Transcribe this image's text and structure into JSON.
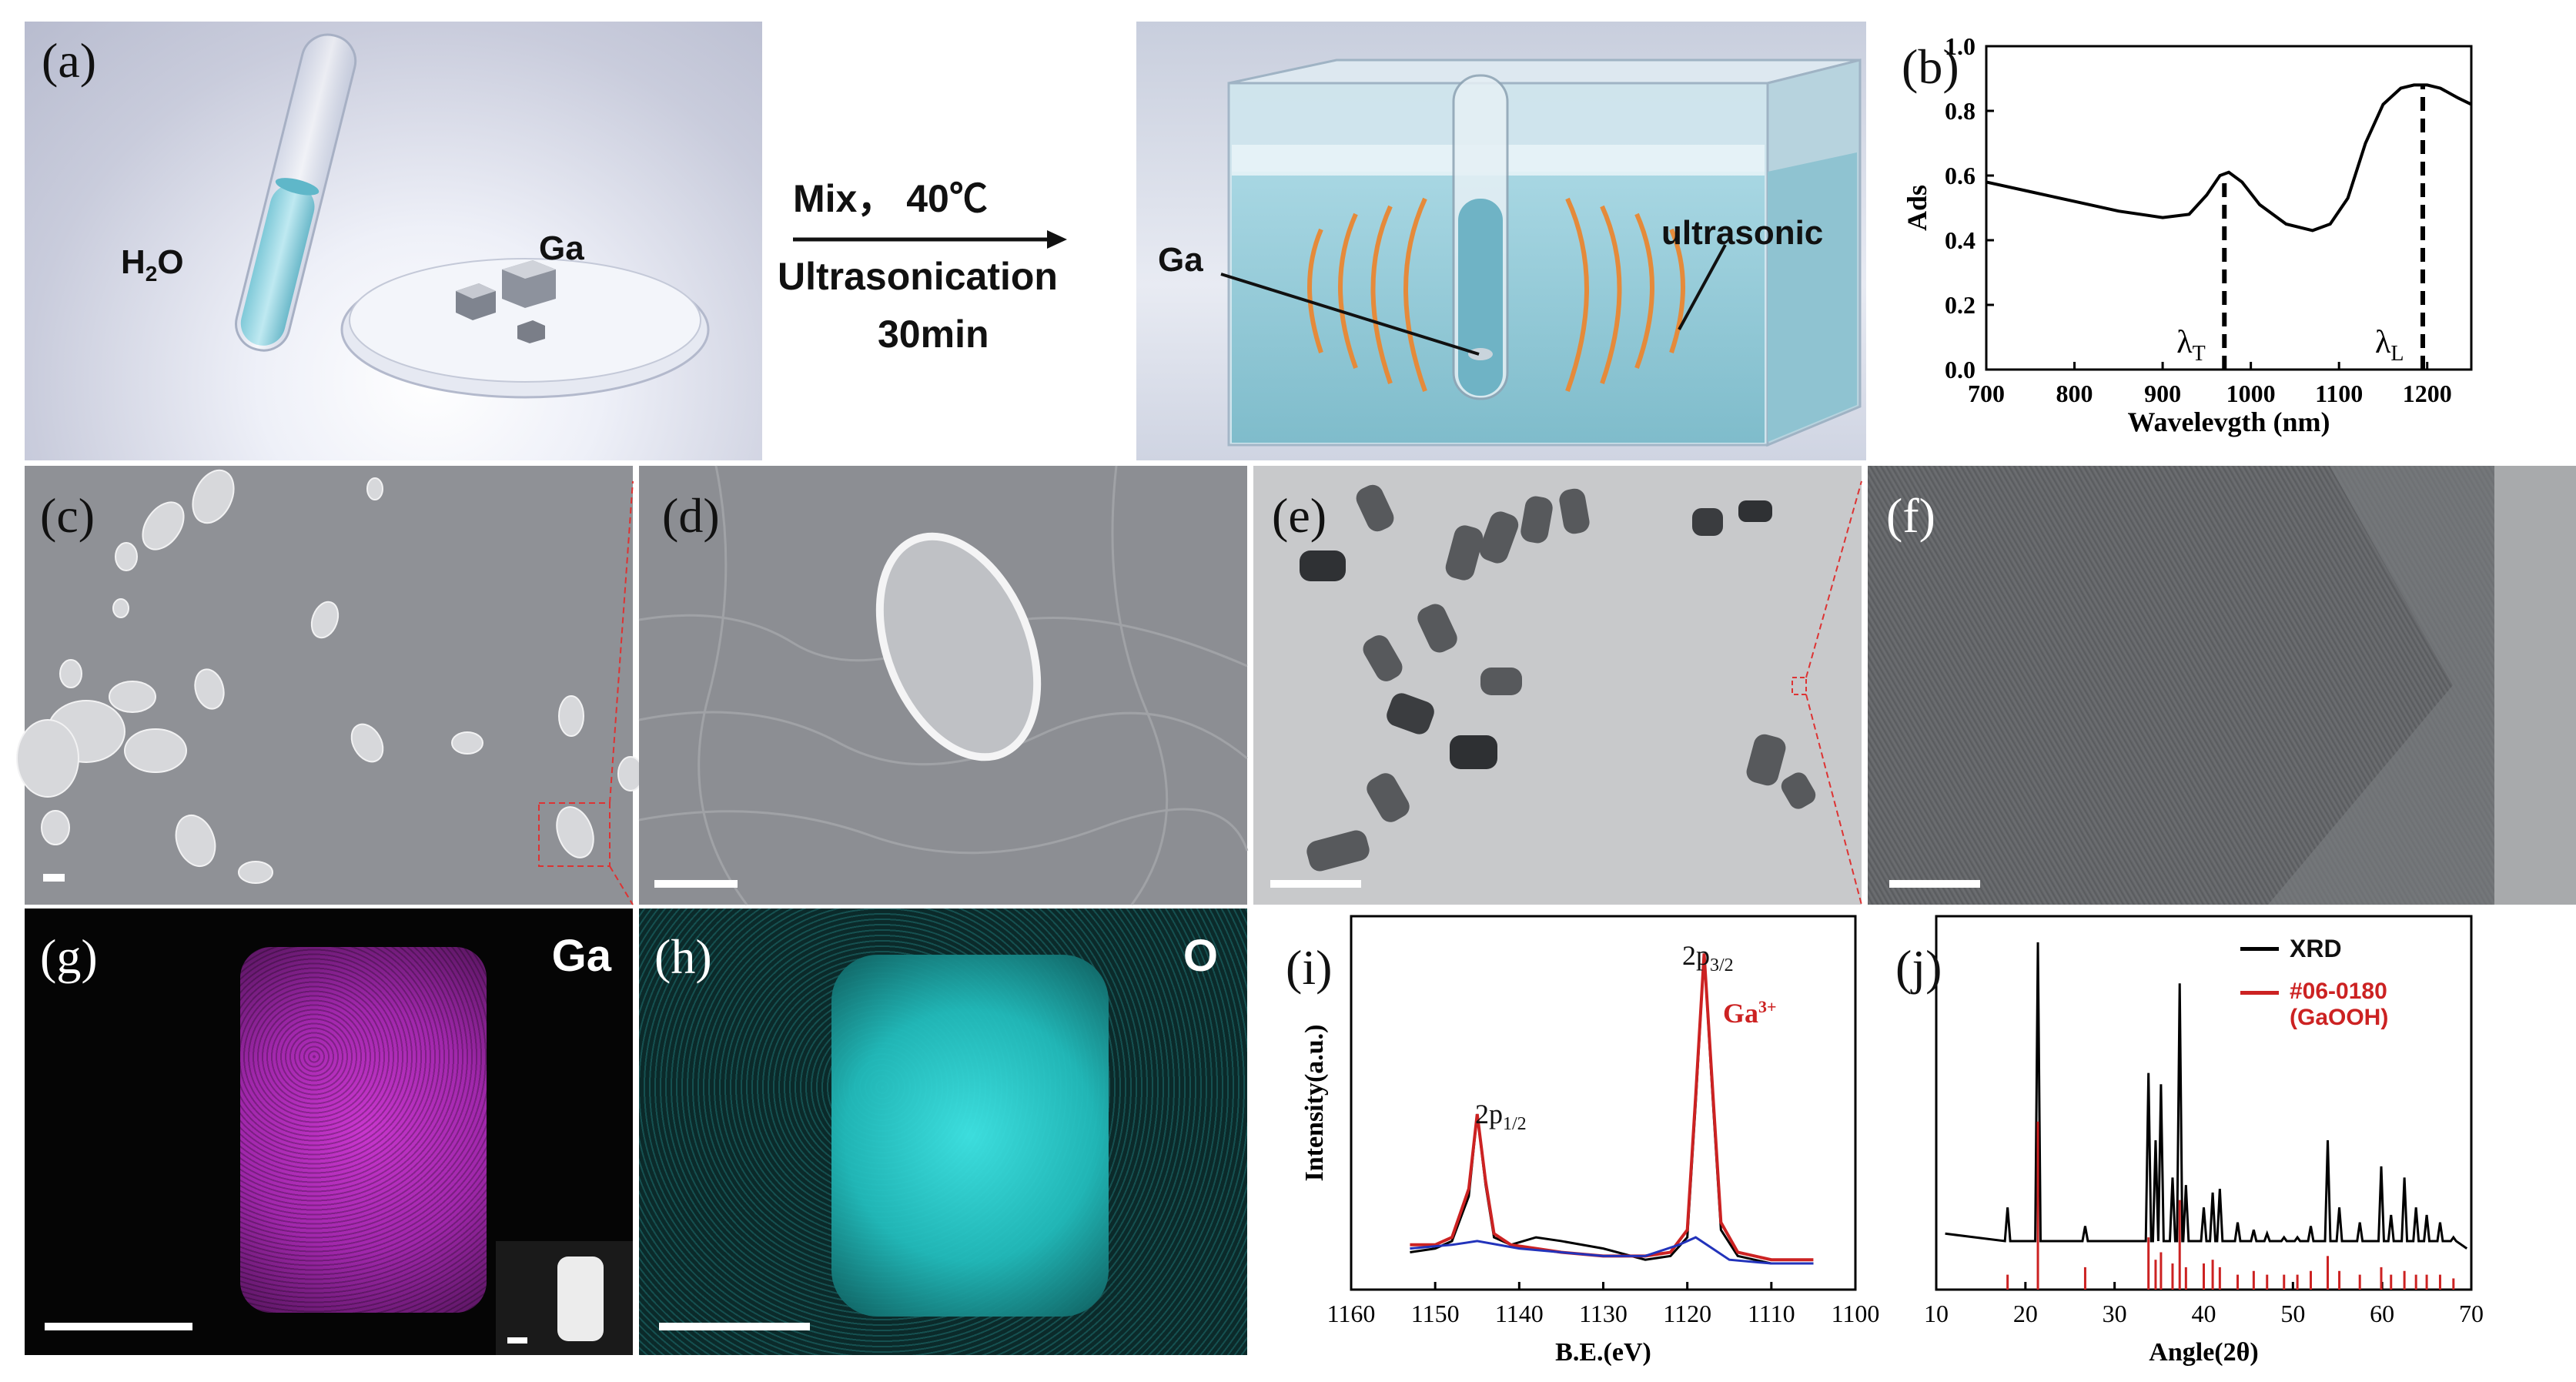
{
  "figure": {
    "labels": {
      "a": "(a)",
      "b": "(b)",
      "c": "(c)",
      "d": "(d)",
      "e": "(e)",
      "f": "(f)",
      "g": "(g)",
      "h": "(h)",
      "i": "(i)",
      "j": "(j)"
    },
    "panel_a": {
      "water_label_main": "H",
      "water_label_sub": "2",
      "water_label_end": "O",
      "ga_label": "Ga",
      "process_line1": "Mix， 40℃",
      "process_line2": "Ultrasonication",
      "process_line3": "30min",
      "bath_ga_label": "Ga",
      "bath_ultra_label": "ultrasonic"
    },
    "panel_g": {
      "element": "Ga"
    },
    "panel_h": {
      "element": "O"
    },
    "panel_i": {
      "peak1_main": "2p",
      "peak1_sub": "1/2",
      "peak2_main": "2p",
      "peak2_sub": "3/2",
      "species_main": "Ga",
      "species_sup": "3+"
    },
    "panel_j": {
      "legend1": "XRD",
      "legend2_line1": "#06-0180",
      "legend2_line2": "(GaOOH)"
    }
  },
  "chart_data": [
    {
      "id": "b",
      "type": "line",
      "xlabel": "Wavelevgth (nm)",
      "ylabel": "Ads",
      "xlim": [
        700,
        1250
      ],
      "ylim": [
        0.0,
        1.0
      ],
      "xticks": [
        700,
        800,
        900,
        1000,
        1100,
        1200
      ],
      "yticks": [
        0.0,
        0.2,
        0.4,
        0.6,
        0.8,
        1.0
      ],
      "x": [
        700,
        750,
        800,
        850,
        900,
        930,
        950,
        965,
        975,
        990,
        1010,
        1040,
        1070,
        1090,
        1110,
        1130,
        1150,
        1170,
        1185,
        1200,
        1215,
        1235,
        1250
      ],
      "y": [
        0.58,
        0.55,
        0.52,
        0.49,
        0.47,
        0.48,
        0.54,
        0.6,
        0.61,
        0.58,
        0.51,
        0.45,
        0.43,
        0.45,
        0.53,
        0.7,
        0.82,
        0.87,
        0.88,
        0.88,
        0.87,
        0.84,
        0.82
      ],
      "markers": [
        {
          "x": 970,
          "label_main": "λ",
          "label_sub": "T"
        },
        {
          "x": 1195,
          "label_main": "λ",
          "label_sub": "L"
        }
      ]
    },
    {
      "id": "i",
      "type": "line",
      "xlabel": "B.E.(eV)",
      "ylabel": "Intensity(a.u.)",
      "xlim": [
        1160,
        1100
      ],
      "ylim": [
        0,
        100
      ],
      "xticks": [
        1160,
        1150,
        1140,
        1130,
        1120,
        1110,
        1100
      ],
      "series": [
        {
          "role": "measured",
          "color": "#000000",
          "x": [
            1153,
            1150,
            1148,
            1146,
            1145,
            1144,
            1143,
            1141,
            1138,
            1135,
            1130,
            1125,
            1122,
            1120,
            1119,
            1118,
            1117,
            1116,
            1114,
            1110,
            1105
          ],
          "y": [
            10,
            11,
            13,
            25,
            47,
            28,
            14,
            12,
            14,
            13,
            11,
            8,
            9,
            14,
            50,
            90,
            52,
            16,
            9,
            7,
            7
          ]
        },
        {
          "role": "fit",
          "color": "#cc2222",
          "x": [
            1153,
            1150,
            1148,
            1146,
            1145,
            1144,
            1143,
            1141,
            1138,
            1135,
            1130,
            1125,
            1122,
            1120,
            1119,
            1118,
            1117,
            1116,
            1114,
            1110,
            1105
          ],
          "y": [
            12,
            12,
            14,
            27,
            47,
            29,
            15,
            12,
            11,
            10,
            9,
            9,
            10,
            16,
            52,
            90,
            54,
            18,
            10,
            8,
            8
          ]
        },
        {
          "role": "background",
          "color": "#2233bb",
          "x": [
            1153,
            1148,
            1145,
            1140,
            1135,
            1130,
            1125,
            1121,
            1119,
            1117,
            1115,
            1110,
            1105
          ],
          "y": [
            11,
            12,
            13,
            11,
            10,
            9,
            9,
            12,
            14,
            11,
            8,
            7,
            7
          ]
        }
      ]
    },
    {
      "id": "j",
      "type": "bar",
      "xlabel": "Angle(2θ)",
      "ylabel": "",
      "xlim": [
        10,
        70
      ],
      "ylim": [
        0,
        100
      ],
      "xticks": [
        10,
        20,
        30,
        40,
        50,
        60,
        70
      ],
      "baseline": 13,
      "series": [
        {
          "role": "measured",
          "name": "XRD",
          "color": "#000000",
          "peaks": [
            [
              18.0,
              22
            ],
            [
              21.4,
              93
            ],
            [
              26.7,
              17
            ],
            [
              33.8,
              58
            ],
            [
              34.6,
              40
            ],
            [
              35.2,
              55
            ],
            [
              36.5,
              30
            ],
            [
              37.3,
              82
            ],
            [
              38.0,
              28
            ],
            [
              40.0,
              22
            ],
            [
              41.0,
              26
            ],
            [
              41.8,
              27
            ],
            [
              43.8,
              18
            ],
            [
              45.6,
              16
            ],
            [
              47.1,
              15
            ],
            [
              49.0,
              14
            ],
            [
              50.5,
              14
            ],
            [
              52.0,
              17
            ],
            [
              53.9,
              40
            ],
            [
              55.2,
              22
            ],
            [
              57.5,
              18
            ],
            [
              59.9,
              33
            ],
            [
              61.0,
              20
            ],
            [
              62.5,
              30
            ],
            [
              63.8,
              22
            ],
            [
              65.0,
              20
            ],
            [
              66.5,
              18
            ],
            [
              68.0,
              14
            ]
          ]
        },
        {
          "role": "reference",
          "name": "#06-0180 (GaOOH)",
          "color": "#cc2222",
          "peaks": [
            [
              18.0,
              4
            ],
            [
              21.4,
              45
            ],
            [
              26.7,
              6
            ],
            [
              33.8,
              14
            ],
            [
              34.6,
              8
            ],
            [
              35.2,
              10
            ],
            [
              36.5,
              7
            ],
            [
              37.3,
              24
            ],
            [
              38.0,
              6
            ],
            [
              40.0,
              7
            ],
            [
              41.0,
              8
            ],
            [
              41.8,
              6
            ],
            [
              43.8,
              4
            ],
            [
              45.6,
              5
            ],
            [
              47.1,
              4
            ],
            [
              49.0,
              4
            ],
            [
              50.5,
              4
            ],
            [
              52.0,
              5
            ],
            [
              53.9,
              9
            ],
            [
              55.2,
              5
            ],
            [
              57.5,
              4
            ],
            [
              59.9,
              6
            ],
            [
              61.0,
              4
            ],
            [
              62.5,
              5
            ],
            [
              63.8,
              4
            ],
            [
              65.0,
              4
            ],
            [
              66.5,
              4
            ],
            [
              68.0,
              3
            ]
          ]
        }
      ]
    }
  ]
}
